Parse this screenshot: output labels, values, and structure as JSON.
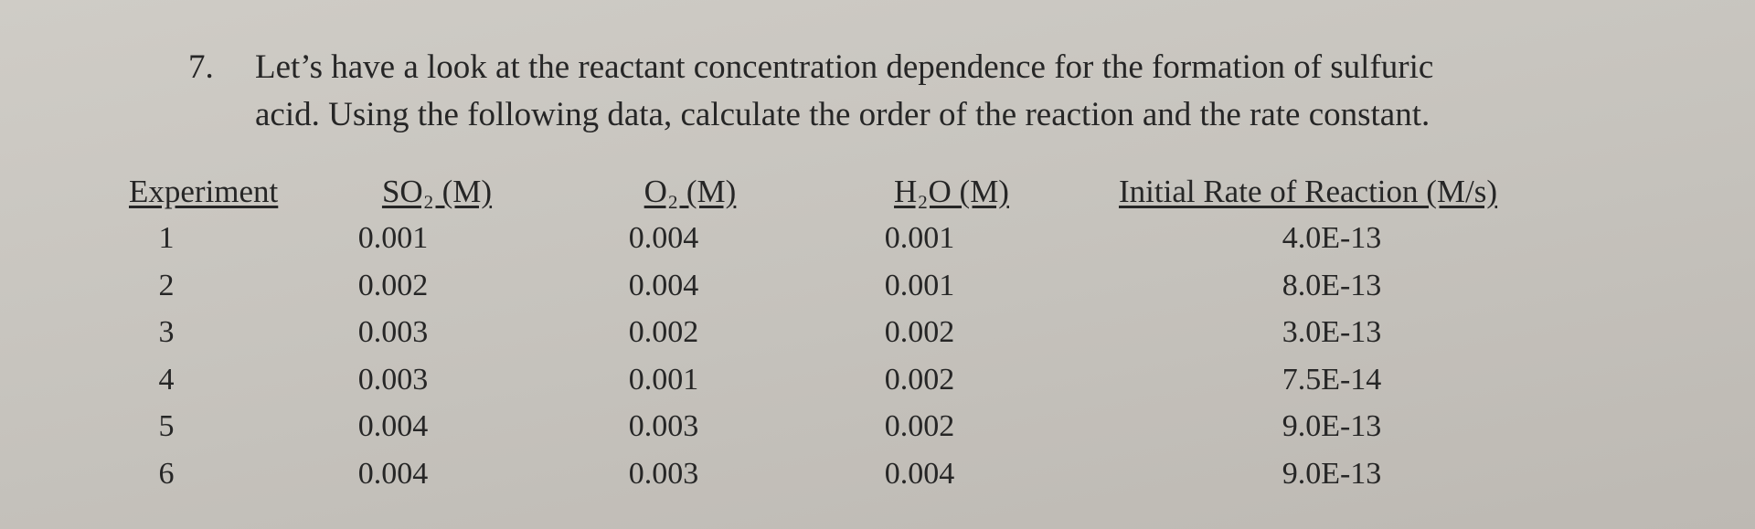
{
  "question": {
    "number": "7.",
    "lines": [
      "Let’s have a look at the reactant concentration dependence for the formation of sulfuric",
      "acid. Using the following data, calculate the order of the reaction and the rate constant."
    ]
  },
  "table": {
    "headers": [
      "Experiment",
      "SO₂ (M)",
      "O₂ (M)",
      "H₂O (M)",
      "Initial Rate of Reaction (M/s)"
    ],
    "rows": [
      [
        "1",
        "0.001",
        "0.004",
        "0.001",
        "4.0E-13"
      ],
      [
        "2",
        "0.002",
        "0.004",
        "0.001",
        "8.0E-13"
      ],
      [
        "3",
        "0.003",
        "0.002",
        "0.002",
        "3.0E-13"
      ],
      [
        "4",
        "0.003",
        "0.001",
        "0.002",
        "7.5E-14"
      ],
      [
        "5",
        "0.004",
        "0.003",
        "0.002",
        "9.0E-13"
      ],
      [
        "6",
        "0.004",
        "0.003",
        "0.004",
        "9.0E-13"
      ]
    ]
  }
}
